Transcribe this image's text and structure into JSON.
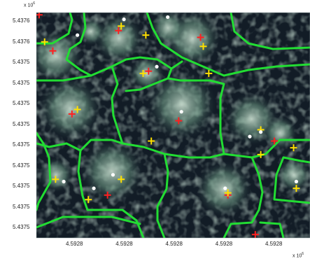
{
  "figure": {
    "y_exponent_base": "x 10",
    "y_exponent_power": "6",
    "x_exponent_base": "x 10",
    "x_exponent_power": "6"
  },
  "chart_data": {
    "type": "scatter",
    "background": "satellite imagery with tree crown segmentation boundaries",
    "y_ticks": [
      "5.4376",
      "5.4376",
      "5.4375",
      "5.4375",
      "5.4375",
      "5.4375",
      "5.4375",
      "5.4375",
      "5.4375",
      "5.4375",
      "5.4375"
    ],
    "x_ticks": [
      "4.5928",
      "4.5928",
      "4.5928",
      "4.5928",
      "4.5928"
    ],
    "colors": {
      "boundary": "#22dd33",
      "red_cross": "#ff2020",
      "yellow_cross": "#ffe000",
      "white_dot": "#ffffff"
    },
    "red_crosses": [
      [
        0.01,
        0.01
      ],
      [
        0.3,
        0.08
      ],
      [
        0.06,
        0.17
      ],
      [
        0.6,
        0.11
      ],
      [
        0.41,
        0.26
      ],
      [
        0.13,
        0.45
      ],
      [
        0.52,
        0.48
      ],
      [
        0.87,
        0.57
      ],
      [
        0.26,
        0.81
      ],
      [
        0.7,
        0.81
      ],
      [
        0.8,
        0.985
      ]
    ],
    "yellow_crosses": [
      [
        0.31,
        0.06
      ],
      [
        0.03,
        0.13
      ],
      [
        0.4,
        0.1
      ],
      [
        0.61,
        0.15
      ],
      [
        0.63,
        0.27
      ],
      [
        0.39,
        0.27
      ],
      [
        0.15,
        0.43
      ],
      [
        0.42,
        0.57
      ],
      [
        0.82,
        0.52
      ],
      [
        0.94,
        0.6
      ],
      [
        0.82,
        0.63
      ],
      [
        0.07,
        0.74
      ],
      [
        0.31,
        0.74
      ],
      [
        0.19,
        0.83
      ],
      [
        0.7,
        0.8
      ],
      [
        0.95,
        0.78
      ]
    ],
    "white_dots": [
      [
        0.32,
        0.03
      ],
      [
        0.48,
        0.02
      ],
      [
        0.15,
        0.1
      ],
      [
        0.44,
        0.24
      ],
      [
        0.53,
        0.44
      ],
      [
        0.78,
        0.55
      ],
      [
        0.82,
        0.53
      ],
      [
        0.1,
        0.75
      ],
      [
        0.28,
        0.72
      ],
      [
        0.21,
        0.78
      ],
      [
        0.69,
        0.78
      ],
      [
        0.95,
        0.75
      ]
    ]
  }
}
